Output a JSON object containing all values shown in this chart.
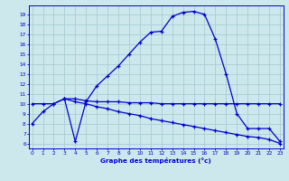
{
  "bg_color": "#cce8ec",
  "grid_color": "#aaccd4",
  "line_color": "#0000cc",
  "xlabel": "Graphe des températures (°c)",
  "ylabel_ticks": [
    6,
    7,
    8,
    9,
    10,
    11,
    12,
    13,
    14,
    15,
    16,
    17,
    18,
    19
  ],
  "xticks": [
    0,
    1,
    2,
    3,
    4,
    5,
    6,
    7,
    8,
    9,
    10,
    11,
    12,
    13,
    14,
    15,
    16,
    17,
    18,
    19,
    20,
    21,
    22,
    23
  ],
  "xlim": [
    -0.3,
    23.3
  ],
  "ylim": [
    5.5,
    19.9
  ],
  "curve1_x": [
    0,
    1,
    2,
    3,
    4,
    5,
    6,
    7,
    8,
    9,
    10,
    11,
    12,
    13,
    14,
    15,
    16,
    17,
    18,
    19,
    20,
    21,
    22,
    23
  ],
  "curve1_y": [
    8.0,
    9.2,
    10.0,
    10.5,
    6.2,
    10.2,
    11.8,
    12.8,
    13.8,
    15.0,
    16.2,
    17.2,
    17.3,
    18.8,
    19.2,
    19.3,
    19.0,
    16.5,
    13.0,
    9.0,
    7.5,
    7.5,
    7.5,
    6.2
  ],
  "curve2_x": [
    0,
    1,
    2,
    3,
    4,
    5,
    6,
    7,
    8,
    9,
    10,
    11,
    12,
    13,
    14,
    15,
    16,
    17,
    18,
    19,
    20,
    21,
    22,
    23
  ],
  "curve2_y": [
    10.0,
    10.0,
    10.0,
    10.5,
    10.5,
    10.3,
    10.2,
    10.2,
    10.2,
    10.1,
    10.1,
    10.1,
    10.0,
    10.0,
    10.0,
    10.0,
    10.0,
    10.0,
    10.0,
    10.0,
    10.0,
    10.0,
    10.0,
    10.0
  ],
  "curve3_x": [
    3,
    4,
    5,
    6,
    7,
    8,
    9,
    10,
    11,
    12,
    13,
    14,
    15,
    16,
    17,
    18,
    19,
    20,
    21,
    22,
    23
  ],
  "curve3_y": [
    10.5,
    10.2,
    10.0,
    9.7,
    9.5,
    9.2,
    9.0,
    8.8,
    8.5,
    8.3,
    8.1,
    7.9,
    7.7,
    7.5,
    7.3,
    7.1,
    6.9,
    6.7,
    6.6,
    6.4,
    6.0
  ]
}
